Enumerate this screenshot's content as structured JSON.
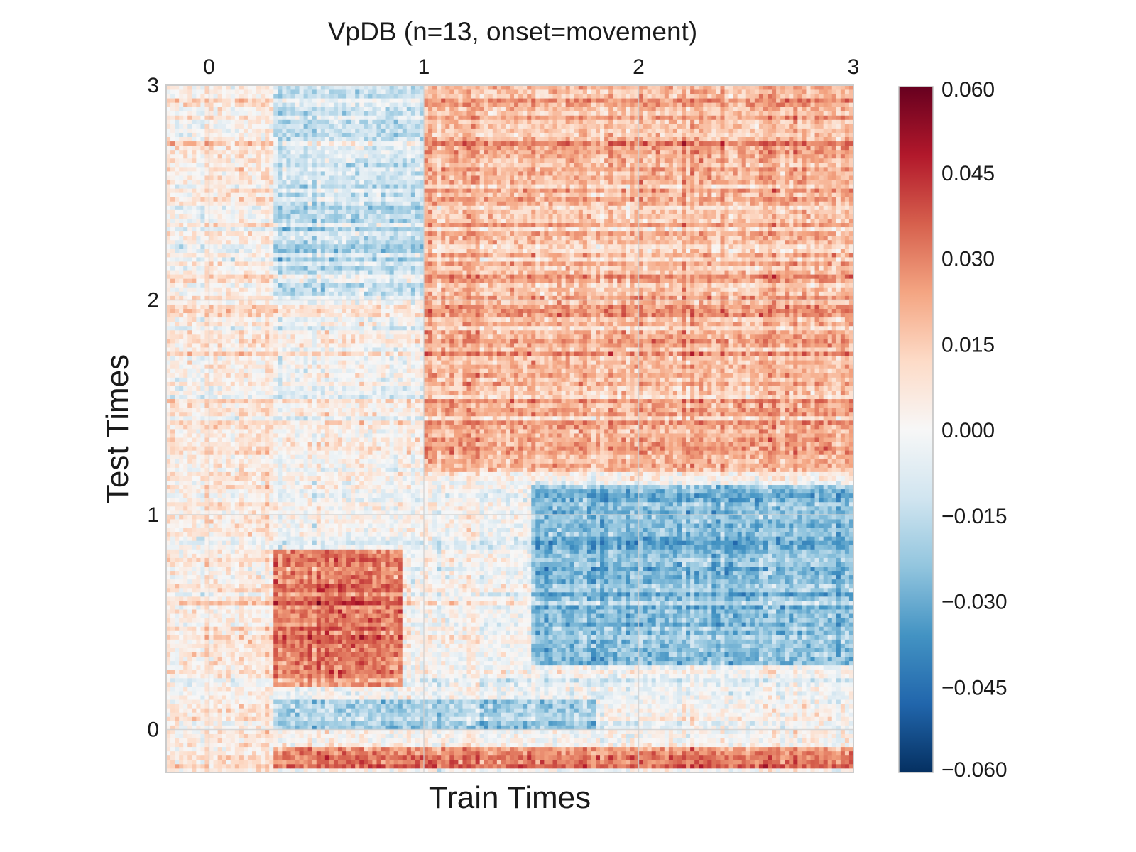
{
  "chart_data": {
    "type": "heatmap",
    "title": "VpDB (n=13, onset=movement)",
    "xlabel": "Train Times",
    "ylabel": "Test Times",
    "xlim": [
      -0.2,
      3.0
    ],
    "ylim": [
      -0.2,
      3.0
    ],
    "x_ticks": [
      "0",
      "1",
      "2",
      "3"
    ],
    "x_tick_values": [
      0,
      1,
      2,
      3
    ],
    "x_ticks_position": "top",
    "y_ticks": [
      "0",
      "1",
      "2",
      "3"
    ],
    "y_tick_values": [
      0,
      1,
      2,
      3
    ],
    "grid": true,
    "colormap": "RdBu_r",
    "colorbar": {
      "vmin": -0.06,
      "vmax": 0.06,
      "ticks": [
        "0.060",
        "0.045",
        "0.030",
        "0.015",
        "0.000",
        "−0.015",
        "−0.030",
        "−0.045",
        "−0.060"
      ],
      "tick_values": [
        0.06,
        0.045,
        0.03,
        0.015,
        0.0,
        -0.015,
        -0.03,
        -0.045,
        -0.06
      ],
      "position": "right"
    },
    "grid_resolution": [
      160,
      160
    ],
    "approximate_regions": [
      {
        "train": [
          0.3,
          0.9
        ],
        "test": [
          0.2,
          0.85
        ],
        "mean_value": 0.03
      },
      {
        "train": [
          1.0,
          3.0
        ],
        "test": [
          1.2,
          3.0
        ],
        "mean_value": 0.02
      },
      {
        "train": [
          0.3,
          1.8
        ],
        "test": [
          0.0,
          0.15
        ],
        "mean_value": -0.02
      },
      {
        "train": [
          1.5,
          3.0
        ],
        "test": [
          0.3,
          1.15
        ],
        "mean_value": -0.025
      },
      {
        "train": [
          0.0,
          1.0
        ],
        "test": [
          2.0,
          3.0
        ],
        "mean_value": -0.012
      },
      {
        "train": [
          0.0,
          3.0
        ],
        "test": [
          -0.18,
          -0.08
        ],
        "mean_value": 0.028
      },
      {
        "train": [
          -0.2,
          0.3
        ],
        "test": [
          -0.2,
          3.0
        ],
        "mean_value": 0.005
      }
    ],
    "colors": {
      "max": "#67001f",
      "high": "#d6604d",
      "mid_high": "#f4a582",
      "zero": "#f7f7f7",
      "mid_low": "#92c5de",
      "low": "#4393c3",
      "min": "#053061"
    }
  }
}
